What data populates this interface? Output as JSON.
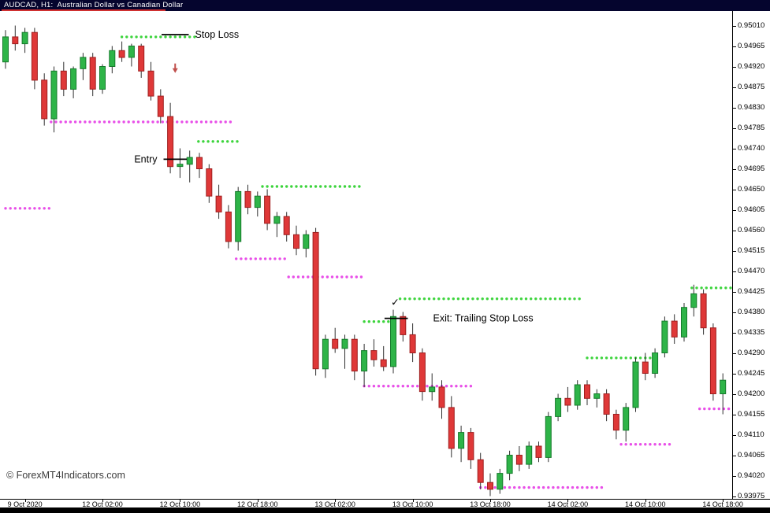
{
  "window": {
    "title_bar": "AUDCAD, H1:  Australian Dollar vs Canadian Dollar"
  },
  "watermark": "© ForexMT4Indicators.com",
  "colors": {
    "titlebar_bg": "#05052e",
    "titlebar_text": "#ffffff",
    "title_underline": "#d03030",
    "chart_bg": "#ffffff",
    "bull_body": "#2eb448",
    "bull_border": "#157a2b",
    "bear_body": "#df3838",
    "bear_border": "#9e1f1f",
    "wick": "#303030",
    "dot_green": "#3cd43c",
    "dot_magenta": "#e84fe8",
    "annotation": "#000000",
    "arrow": "#c0504d",
    "axis_text": "#000000"
  },
  "chart_data": {
    "type": "candlestick",
    "symbol": "AUDCAD",
    "timeframe": "H1",
    "title": "AUDCAD H1 - Australian Dollar vs Canadian Dollar",
    "plot_range": {
      "top": 0.95042,
      "bottom": 0.93969
    },
    "price_axis_labels": [
      "0.95010",
      "0.94965",
      "0.94920",
      "0.94875",
      "0.94830",
      "0.94785",
      "0.94740",
      "0.94695",
      "0.94650",
      "0.94605",
      "0.94560",
      "0.94515",
      "0.94470",
      "0.94425",
      "0.94380",
      "0.94335",
      "0.94290",
      "0.94245",
      "0.94200",
      "0.94155",
      "0.94110",
      "0.94065",
      "0.94020",
      "0.93975"
    ],
    "time_axis_labels": [
      {
        "label": "9 Oct 2020",
        "bar": 2
      },
      {
        "label": "12 Oct 02:00",
        "bar": 10
      },
      {
        "label": "12 Oct 10:00",
        "bar": 18
      },
      {
        "label": "12 Oct 18:00",
        "bar": 26
      },
      {
        "label": "13 Oct 02:00",
        "bar": 34
      },
      {
        "label": "13 Oct 10:00",
        "bar": 42
      },
      {
        "label": "13 Oct 18:00",
        "bar": 50
      },
      {
        "label": "14 Oct 02:00",
        "bar": 58
      },
      {
        "label": "14 Oct 10:00",
        "bar": 66
      },
      {
        "label": "14 Oct 18:00",
        "bar": 74
      }
    ],
    "ohlc_format": [
      "open",
      "high",
      "low",
      "close"
    ],
    "candles": [
      [
        0.9493,
        0.95,
        0.94915,
        0.94985
      ],
      [
        0.94985,
        0.9501,
        0.94955,
        0.9497
      ],
      [
        0.9497,
        0.95005,
        0.9495,
        0.94995
      ],
      [
        0.94995,
        0.95005,
        0.9487,
        0.9489
      ],
      [
        0.9489,
        0.94905,
        0.9479,
        0.94805
      ],
      [
        0.94805,
        0.9492,
        0.94775,
        0.9491
      ],
      [
        0.9491,
        0.9493,
        0.94855,
        0.9487
      ],
      [
        0.9487,
        0.9492,
        0.9485,
        0.94915
      ],
      [
        0.94915,
        0.9495,
        0.9489,
        0.9494
      ],
      [
        0.9494,
        0.9495,
        0.94855,
        0.9487
      ],
      [
        0.9487,
        0.94925,
        0.9486,
        0.9492
      ],
      [
        0.9492,
        0.94965,
        0.94905,
        0.94955
      ],
      [
        0.94955,
        0.94975,
        0.9493,
        0.9494
      ],
      [
        0.9494,
        0.9497,
        0.9492,
        0.94965
      ],
      [
        0.94965,
        0.9497,
        0.94895,
        0.9491
      ],
      [
        0.9491,
        0.9493,
        0.94845,
        0.94855
      ],
      [
        0.94855,
        0.9487,
        0.94795,
        0.9481
      ],
      [
        0.9481,
        0.9484,
        0.94685,
        0.947
      ],
      [
        0.947,
        0.9474,
        0.94675,
        0.94705
      ],
      [
        0.94705,
        0.94735,
        0.94665,
        0.9472
      ],
      [
        0.9472,
        0.9473,
        0.94675,
        0.94695
      ],
      [
        0.94695,
        0.94705,
        0.9462,
        0.94635
      ],
      [
        0.94635,
        0.9466,
        0.94585,
        0.946
      ],
      [
        0.946,
        0.94615,
        0.9452,
        0.94535
      ],
      [
        0.94535,
        0.94655,
        0.94515,
        0.94645
      ],
      [
        0.94645,
        0.9466,
        0.94595,
        0.9461
      ],
      [
        0.9461,
        0.94645,
        0.9459,
        0.94635
      ],
      [
        0.94635,
        0.9465,
        0.9456,
        0.94575
      ],
      [
        0.94575,
        0.946,
        0.94545,
        0.9459
      ],
      [
        0.9459,
        0.946,
        0.94535,
        0.9455
      ],
      [
        0.9455,
        0.9457,
        0.94505,
        0.9452
      ],
      [
        0.9452,
        0.9456,
        0.945,
        0.9455
      ],
      [
        0.94555,
        0.94565,
        0.9424,
        0.94255
      ],
      [
        0.94255,
        0.9433,
        0.94235,
        0.9432
      ],
      [
        0.9432,
        0.94345,
        0.9429,
        0.943
      ],
      [
        0.943,
        0.9433,
        0.94255,
        0.9432
      ],
      [
        0.9432,
        0.9433,
        0.9423,
        0.9425
      ],
      [
        0.9425,
        0.9431,
        0.94215,
        0.94295
      ],
      [
        0.94295,
        0.9432,
        0.9426,
        0.94275
      ],
      [
        0.94275,
        0.94305,
        0.9425,
        0.9426
      ],
      [
        0.9426,
        0.94385,
        0.94245,
        0.9437
      ],
      [
        0.9437,
        0.9438,
        0.94315,
        0.9433
      ],
      [
        0.9433,
        0.94355,
        0.9427,
        0.9429
      ],
      [
        0.9429,
        0.943,
        0.94185,
        0.94205
      ],
      [
        0.94205,
        0.94245,
        0.94185,
        0.94215
      ],
      [
        0.94215,
        0.9423,
        0.94145,
        0.9417
      ],
      [
        0.9417,
        0.94195,
        0.9406,
        0.9408
      ],
      [
        0.9408,
        0.9413,
        0.9405,
        0.94115
      ],
      [
        0.94115,
        0.94125,
        0.94035,
        0.94055
      ],
      [
        0.94055,
        0.9407,
        0.9399,
        0.94005
      ],
      [
        0.94005,
        0.94025,
        0.93975,
        0.9399
      ],
      [
        0.9399,
        0.94035,
        0.9398,
        0.94025
      ],
      [
        0.94025,
        0.94075,
        0.9401,
        0.94065
      ],
      [
        0.94065,
        0.94085,
        0.9403,
        0.94045
      ],
      [
        0.94045,
        0.94095,
        0.94035,
        0.94085
      ],
      [
        0.94085,
        0.94095,
        0.9405,
        0.9406
      ],
      [
        0.9406,
        0.9416,
        0.9405,
        0.9415
      ],
      [
        0.9415,
        0.942,
        0.9414,
        0.9419
      ],
      [
        0.9419,
        0.94215,
        0.9416,
        0.94175
      ],
      [
        0.94175,
        0.9423,
        0.94165,
        0.9422
      ],
      [
        0.9422,
        0.9423,
        0.94175,
        0.9419
      ],
      [
        0.9419,
        0.9421,
        0.9417,
        0.942
      ],
      [
        0.942,
        0.9421,
        0.9414,
        0.94155
      ],
      [
        0.94155,
        0.94165,
        0.941,
        0.9412
      ],
      [
        0.9412,
        0.9418,
        0.94095,
        0.9417
      ],
      [
        0.9417,
        0.9428,
        0.9416,
        0.9427
      ],
      [
        0.9427,
        0.9429,
        0.9423,
        0.94245
      ],
      [
        0.94245,
        0.943,
        0.94235,
        0.9429
      ],
      [
        0.9429,
        0.9437,
        0.9428,
        0.9436
      ],
      [
        0.9436,
        0.94375,
        0.9431,
        0.94325
      ],
      [
        0.94325,
        0.944,
        0.94315,
        0.9439
      ],
      [
        0.9439,
        0.9444,
        0.9437,
        0.9442
      ],
      [
        0.9442,
        0.9443,
        0.9433,
        0.94345
      ],
      [
        0.94345,
        0.94355,
        0.94185,
        0.942
      ],
      [
        0.942,
        0.94245,
        0.94155,
        0.9423
      ]
    ],
    "indicator_dots": {
      "green": [
        {
          "from": 12.0,
          "to": 19.8,
          "price": 0.94985
        },
        {
          "from": 19.9,
          "to": 24.0,
          "price": 0.94755
        },
        {
          "from": 26.5,
          "to": 36.7,
          "price": 0.94656
        },
        {
          "from": 37.0,
          "to": 40.2,
          "price": 0.94359
        },
        {
          "from": 40.7,
          "to": 59.3,
          "price": 0.94409
        },
        {
          "from": 60.0,
          "to": 67.3,
          "price": 0.94279
        },
        {
          "from": 70.8,
          "to": 74.9,
          "price": 0.94433
        }
      ],
      "magenta": [
        {
          "from": 0.0,
          "to": 4.5,
          "price": 0.94608
        },
        {
          "from": 4.7,
          "to": 23.4,
          "price": 0.94798
        },
        {
          "from": 23.8,
          "to": 28.9,
          "price": 0.94497
        },
        {
          "from": 29.2,
          "to": 36.7,
          "price": 0.94457
        },
        {
          "from": 37.0,
          "to": 48.2,
          "price": 0.94217
        },
        {
          "from": 49.0,
          "to": 61.9,
          "price": 0.93994
        },
        {
          "from": 63.5,
          "to": 68.7,
          "price": 0.94089
        },
        {
          "from": 71.6,
          "to": 74.9,
          "price": 0.94167
        }
      ]
    },
    "annotations": [
      {
        "id": "stop-loss",
        "label": "Stop Loss",
        "price": 0.9499,
        "bar_from": 16.1,
        "bar_to": 18.9,
        "label_side": "right",
        "gap": 8
      },
      {
        "id": "entry",
        "label": "Entry",
        "price": 0.94716,
        "bar_from": 16.3,
        "bar_to": 18.7,
        "label_side": "left",
        "gap": 8
      },
      {
        "id": "exit",
        "label": "Exit: Trailing Stop Loss",
        "price": 0.94366,
        "bar_from": 39.1,
        "bar_to": 41.5,
        "label_side": "right",
        "gap": 32
      }
    ],
    "markers": {
      "sell_arrow": {
        "bar": 17.5,
        "price": 0.94911
      },
      "check_mark": {
        "bar": 40.2,
        "price": 0.94401,
        "glyph": "✓"
      }
    }
  }
}
